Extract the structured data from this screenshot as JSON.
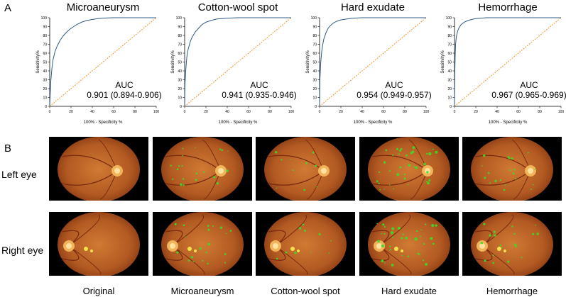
{
  "panel_a_label": "A",
  "panel_b_label": "B",
  "chart_data": [
    {
      "type": "line",
      "title": "Microaneurysm",
      "xlabel": "100% - Specificity  %",
      "ylabel": "Sensitivity%",
      "xlim": [
        0,
        100
      ],
      "ylim": [
        0,
        100
      ],
      "xticks": [
        "0",
        "20",
        "40",
        "60",
        "80",
        "100"
      ],
      "yticks": [
        "0",
        "10",
        "20",
        "30",
        "40",
        "50",
        "60",
        "70",
        "80",
        "90",
        "100"
      ],
      "auc_label": "AUC",
      "auc_value": "0.901 (0.894-0.906)",
      "series": [
        {
          "x": [
            0,
            0.5,
            1,
            2,
            3,
            5,
            7,
            10,
            13,
            16,
            20,
            25,
            30,
            35,
            40,
            45,
            50,
            55,
            60,
            70,
            80,
            90,
            100
          ],
          "y": [
            0,
            15,
            28,
            42,
            52,
            62,
            68,
            75,
            80,
            84,
            88,
            92,
            95,
            97,
            98,
            99,
            99.5,
            99.8,
            100,
            100,
            100,
            100,
            100
          ]
        }
      ],
      "reference_line": {
        "x": [
          0,
          100
        ],
        "y": [
          0,
          100
        ]
      }
    },
    {
      "type": "line",
      "title": "Cotton-wool spot",
      "xlabel": "100% - Specificity  %",
      "ylabel": "Sensitivity%",
      "xlim": [
        0,
        100
      ],
      "ylim": [
        0,
        100
      ],
      "xticks": [
        "0",
        "20",
        "40",
        "60",
        "80",
        "100"
      ],
      "yticks": [
        "0",
        "10",
        "20",
        "30",
        "40",
        "50",
        "60",
        "70",
        "80",
        "90",
        "100"
      ],
      "auc_label": "AUC",
      "auc_value": "0.941 (0.935-0.946)",
      "series": [
        {
          "x": [
            0,
            0.3,
            1,
            2,
            3,
            5,
            7,
            10,
            13,
            16,
            20,
            25,
            30,
            40,
            50,
            60,
            80,
            100
          ],
          "y": [
            0,
            25,
            40,
            55,
            63,
            72,
            78,
            84,
            88,
            92,
            95,
            97,
            98.5,
            99.5,
            100,
            100,
            100,
            100
          ]
        }
      ],
      "reference_line": {
        "x": [
          0,
          100
        ],
        "y": [
          0,
          100
        ]
      }
    },
    {
      "type": "line",
      "title": "Hard exudate",
      "xlabel": "100% - Specificity  %",
      "ylabel": "Sensitivity%",
      "xlim": [
        0,
        100
      ],
      "ylim": [
        0,
        100
      ],
      "xticks": [
        "0",
        "20",
        "40",
        "60",
        "80",
        "100"
      ],
      "yticks": [
        "0",
        "10",
        "20",
        "30",
        "40",
        "50",
        "60",
        "70",
        "80",
        "90",
        "100"
      ],
      "auc_label": "AUC",
      "auc_value": "0.954 (0.949-0.957)",
      "series": [
        {
          "x": [
            0,
            0.3,
            1,
            2,
            3,
            4,
            6,
            8,
            10,
            13,
            16,
            20,
            25,
            30,
            40,
            50,
            60,
            80,
            100
          ],
          "y": [
            0,
            30,
            48,
            62,
            70,
            76,
            83,
            88,
            91,
            94,
            96,
            97.5,
            98.5,
            99.3,
            100,
            100,
            100,
            100,
            100
          ]
        }
      ],
      "reference_line": {
        "x": [
          0,
          100
        ],
        "y": [
          0,
          100
        ]
      }
    },
    {
      "type": "line",
      "title": "Hemorrhage",
      "xlabel": "100% - Specificity  %",
      "ylabel": "Sensitivity%",
      "xlim": [
        0,
        100
      ],
      "ylim": [
        0,
        100
      ],
      "xticks": [
        "0",
        "20",
        "40",
        "60",
        "80",
        "100"
      ],
      "yticks": [
        "0",
        "10",
        "20",
        "30",
        "40",
        "50",
        "60",
        "70",
        "80",
        "90",
        "100"
      ],
      "auc_label": "AUC",
      "auc_value": "0.967 (0.965-0.969)",
      "series": [
        {
          "x": [
            0,
            0.3,
            0.7,
            1,
            1.5,
            2,
            3,
            4,
            6,
            8,
            10,
            13,
            16,
            20,
            25,
            30,
            40,
            60,
            80,
            100
          ],
          "y": [
            0,
            40,
            60,
            70,
            76,
            80,
            85,
            88,
            92,
            94,
            95.5,
            97,
            98,
            99,
            99.5,
            100,
            100,
            100,
            100,
            100
          ]
        }
      ],
      "reference_line": {
        "x": [
          0,
          100
        ],
        "y": [
          0,
          100
        ]
      }
    }
  ],
  "panel_b": {
    "row_labels": [
      "Left eye",
      "Right eye"
    ],
    "column_labels": [
      "Original",
      "Microaneurysm",
      "Cotton-wool spot",
      "Hard exudate",
      "Hemorrhage"
    ]
  },
  "colors": {
    "roc_curve": "#2f5b86",
    "reference_line": "#f0962e",
    "lesion_marker": "#3cdc28",
    "fundus_outer": "#8a3a12",
    "fundus_inner": "#d07a34"
  }
}
